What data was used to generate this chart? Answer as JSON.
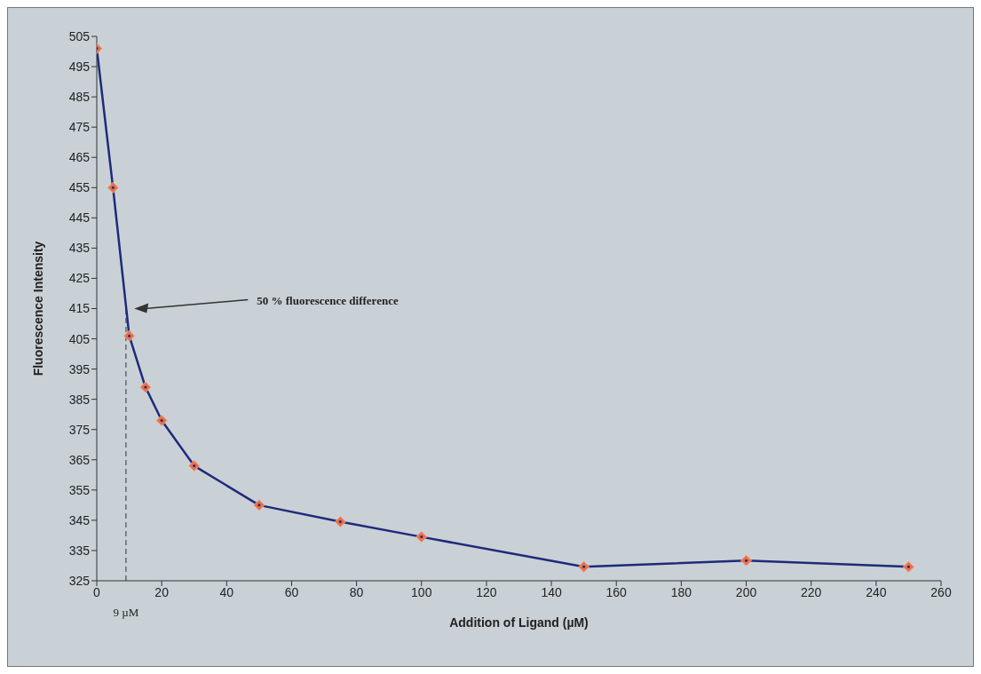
{
  "chart_data": {
    "type": "line",
    "xlabel": "Addition of Ligand (µM)",
    "ylabel": "Fluorescence Intensity",
    "x": [
      0,
      5,
      10,
      15,
      20,
      30,
      50,
      75,
      100,
      150,
      200,
      250
    ],
    "series": [
      {
        "color": "#1f2a7a",
        "values": [
          501,
          455,
          406,
          389,
          378,
          363,
          350,
          344.5,
          339.5,
          329.6,
          331.7,
          329.6
        ]
      }
    ],
    "xlim": [
      0,
      260
    ],
    "xticks": [
      0,
      20,
      40,
      60,
      80,
      100,
      120,
      140,
      160,
      180,
      200,
      220,
      240,
      260
    ],
    "ylim": [
      325,
      505
    ],
    "yticks": [
      325,
      335,
      345,
      355,
      365,
      375,
      385,
      395,
      405,
      415,
      425,
      435,
      445,
      455,
      465,
      475,
      485,
      495,
      505
    ],
    "grid": false,
    "legend": false,
    "marker": "diamond",
    "line_style": "solid",
    "ref_lines": [
      {
        "axis": "x",
        "value": 9,
        "label": "9 µM",
        "line_style": "dashed",
        "color": "#333333"
      }
    ],
    "annotations": [
      "50 % fluorescence difference"
    ]
  }
}
